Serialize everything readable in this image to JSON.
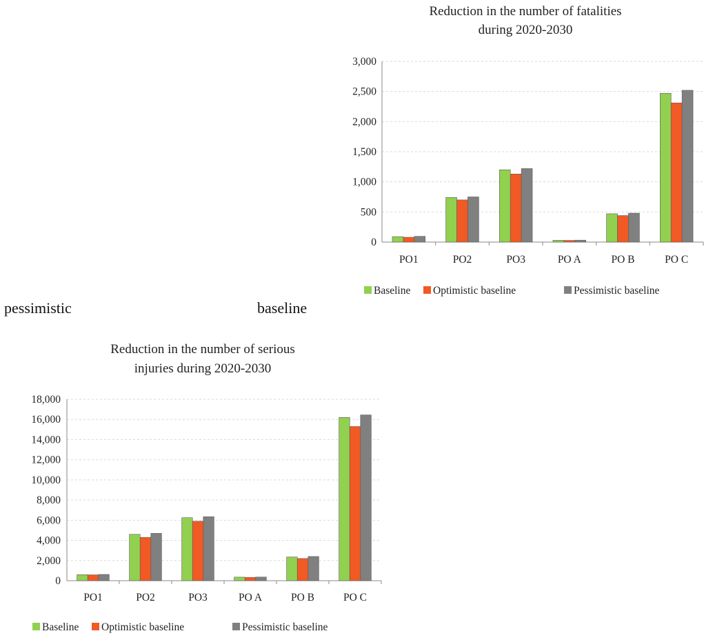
{
  "text_fragments": [
    "pessimistic",
    "baseline"
  ],
  "colors": {
    "Baseline": "#92D050",
    "Optimistic baseline": "#F15A24",
    "Pessimistic baseline": "#808080"
  },
  "chart_data": [
    {
      "type": "bar",
      "title": [
        "Reduction in the number of fatalities",
        "during 2020-2030"
      ],
      "categories": [
        "PO1",
        "PO2",
        "PO3",
        "PO A",
        "PO B",
        "PO C"
      ],
      "series": [
        {
          "name": "Baseline",
          "values": [
            90,
            740,
            1200,
            30,
            470,
            2470
          ]
        },
        {
          "name": "Optimistic baseline",
          "values": [
            80,
            700,
            1130,
            28,
            440,
            2310
          ]
        },
        {
          "name": "Pessimistic baseline",
          "values": [
            95,
            750,
            1220,
            32,
            480,
            2520
          ]
        }
      ],
      "ylim": [
        0,
        3000
      ],
      "yticks": [
        "0",
        "500",
        "1,000",
        "1,500",
        "2,000",
        "2,500",
        "3,000"
      ],
      "grid": true,
      "legend": "bottom"
    },
    {
      "type": "bar",
      "title": [
        "Reduction in the number of serious",
        "injuries during 2020-2030"
      ],
      "categories": [
        "PO1",
        "PO2",
        "PO3",
        "PO A",
        "PO B",
        "PO C"
      ],
      "series": [
        {
          "name": "Baseline",
          "values": [
            600,
            4600,
            6250,
            350,
            2350,
            16200
          ]
        },
        {
          "name": "Optimistic baseline",
          "values": [
            580,
            4300,
            5900,
            330,
            2200,
            15300
          ]
        },
        {
          "name": "Pessimistic baseline",
          "values": [
            620,
            4700,
            6350,
            360,
            2400,
            16450
          ]
        }
      ],
      "ylim": [
        0,
        18000
      ],
      "yticks": [
        "0",
        "2,000",
        "4,000",
        "6,000",
        "8,000",
        "10,000",
        "12,000",
        "14,000",
        "16,000",
        "18,000"
      ],
      "grid": true,
      "legend": "bottom"
    }
  ]
}
